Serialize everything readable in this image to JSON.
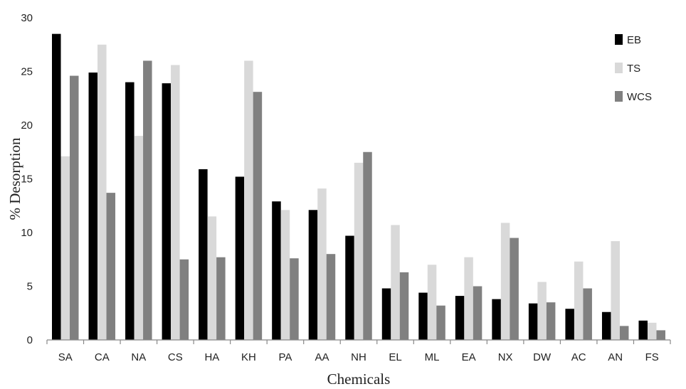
{
  "chart_data": {
    "type": "bar",
    "xlabel": "Chemicals",
    "ylabel": "% Desorption",
    "ylim": [
      0,
      30
    ],
    "yticks": [
      "0",
      "5",
      "10",
      "15",
      "20",
      "25",
      "30"
    ],
    "grid": false,
    "legend_position": "top-right",
    "categories": [
      "SA",
      "CA",
      "NA",
      "CS",
      "HA",
      "KH",
      "PA",
      "AA",
      "NH",
      "EL",
      "ML",
      "EA",
      "NX",
      "DW",
      "AC",
      "AN",
      "FS"
    ],
    "series": [
      {
        "name": "EB",
        "color": "#000000",
        "values": [
          28.5,
          24.9,
          24.0,
          23.9,
          15.9,
          15.2,
          12.9,
          12.1,
          9.7,
          4.8,
          4.4,
          4.1,
          3.8,
          3.4,
          2.9,
          2.6,
          1.8
        ]
      },
      {
        "name": "TS",
        "color": "#d9d9d9",
        "values": [
          17.1,
          27.5,
          19.0,
          25.6,
          11.5,
          26.0,
          12.1,
          14.1,
          16.5,
          10.7,
          7.0,
          7.7,
          10.9,
          5.4,
          7.3,
          9.2,
          1.6
        ]
      },
      {
        "name": "WCS",
        "color": "#808080",
        "values": [
          24.6,
          13.7,
          26.0,
          7.5,
          7.7,
          23.1,
          7.6,
          8.0,
          17.5,
          6.3,
          3.2,
          5.0,
          9.5,
          3.5,
          4.8,
          1.3,
          0.9
        ]
      }
    ]
  }
}
